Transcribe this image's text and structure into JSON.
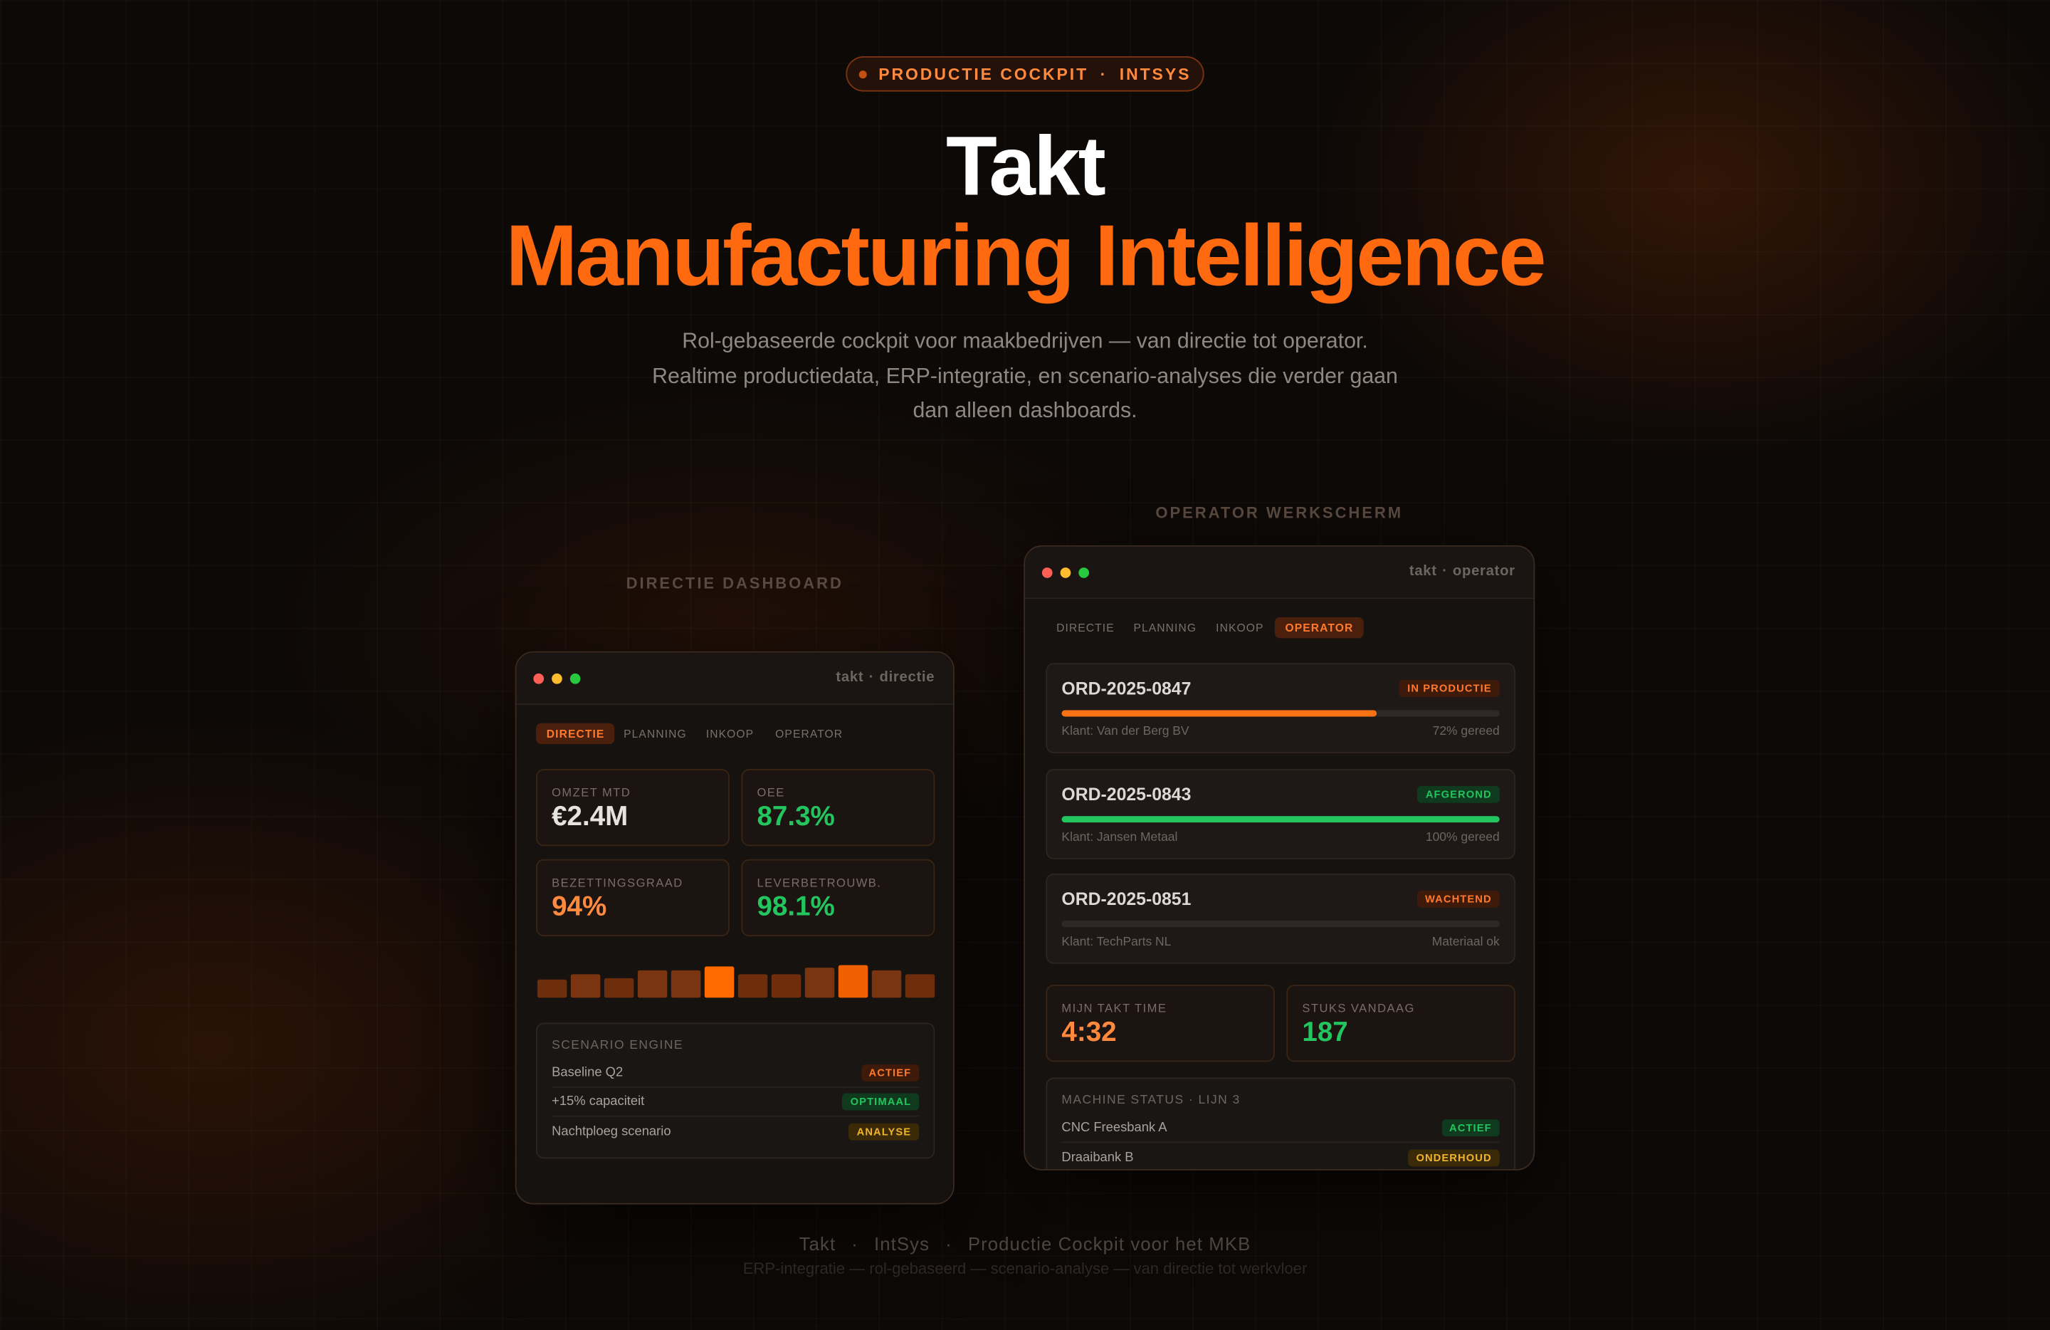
{
  "badge": {
    "label": "PRODUCTIE COCKPIT",
    "separator": "·",
    "brand": "INTSYS"
  },
  "hero": {
    "title": "Takt",
    "subtitle": "Manufacturing Intelligence",
    "description": [
      "Rol-gebaseerde cockpit voor maakbedrijven — van directie tot operator.",
      "Realtime productiedata, ERP-integratie, en scenario-analyses die verder gaan",
      "dan alleen dashboards."
    ]
  },
  "directie": {
    "caption": "DIRECTIE DASHBOARD",
    "window": {
      "app": "takt",
      "separator": "·",
      "role": "directie"
    },
    "tabs": [
      "DIRECTIE",
      "PLANNING",
      "INKOOP",
      "OPERATOR"
    ],
    "kpis": [
      {
        "label": "OMZET MTD",
        "value": "€2.4M"
      },
      {
        "label": "OEE",
        "value": "87.3%"
      },
      {
        "label": "BEZETTINGSGRAAD",
        "value": "94%"
      },
      {
        "label": "LEVERBETROUWB.",
        "value": "98.1%"
      }
    ],
    "bars": {
      "values": [
        14,
        18,
        15,
        21,
        21,
        24,
        18,
        18,
        23,
        25,
        21,
        18
      ],
      "colors": [
        "#6e2e0c",
        "#7a3510",
        "#6e2e0c",
        "#7a3510",
        "#7a3510",
        "#ff6a00",
        "#6e2e0c",
        "#6e2e0c",
        "#7a3510",
        "#f06000",
        "#7a3510",
        "#6e2e0c"
      ]
    },
    "scenario": {
      "title": "SCENARIO ENGINE",
      "rows": [
        {
          "name": "Baseline Q2",
          "status": "ACTIEF"
        },
        {
          "name": "+15% capaciteit",
          "status": "OPTIMAAL"
        },
        {
          "name": "Nachtploeg scenario",
          "status": "ANALYSE"
        }
      ]
    }
  },
  "operator": {
    "caption": "OPERATOR WERKSCHERM",
    "window": {
      "app": "takt",
      "separator": "·",
      "role": "operator"
    },
    "tabs": [
      "DIRECTIE",
      "PLANNING",
      "INKOOP",
      "OPERATOR"
    ],
    "orders": [
      {
        "id": "ORD-2025-0847",
        "status": "IN PRODUCTIE",
        "client": "Klant: Van der Berg BV",
        "progress": 72,
        "progress_label": "72% gereed"
      },
      {
        "id": "ORD-2025-0843",
        "status": "AFGEROND",
        "client": "Klant: Jansen Metaal",
        "progress": 100,
        "progress_label": "100% gereed"
      },
      {
        "id": "ORD-2025-0851",
        "status": "WACHTEND",
        "client": "Klant: TechParts NL",
        "progress": 0,
        "progress_label": "Materiaal ok"
      }
    ],
    "kpis": [
      {
        "label": "MIJN TAKT TIME",
        "value": "4:32"
      },
      {
        "label": "STUKS VANDAAG",
        "value": "187"
      }
    ],
    "machines": {
      "title": "MACHINE STATUS · LIJN 3",
      "rows": [
        {
          "name": "CNC Freesbank A",
          "status": "ACTIEF"
        },
        {
          "name": "Draaibank B",
          "status": "ONDERHOUD"
        }
      ]
    }
  },
  "footer": {
    "items": [
      "Takt",
      "IntSys",
      "Productie Cockpit voor het MKB"
    ],
    "separator": "·",
    "tagline": "ERP-integratie — rol-gebaseerd — scenario-analyse — van directie tot werkvloer"
  }
}
